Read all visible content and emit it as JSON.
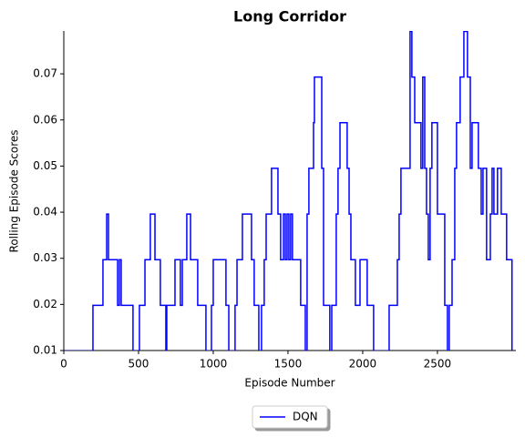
{
  "chart_data": {
    "type": "line",
    "title": "Long Corridor",
    "x_label": "Episode Number",
    "y_label": "Rolling Episode Scores",
    "x": [
      0,
      195,
      262,
      287,
      299,
      360,
      372,
      384,
      463,
      506,
      543,
      579,
      610,
      646,
      683,
      689,
      744,
      780,
      793,
      823,
      848,
      896,
      951,
      988,
      1000,
      1085,
      1104,
      1146,
      1159,
      1195,
      1256,
      1274,
      1305,
      1323,
      1341,
      1354,
      1390,
      1433,
      1451,
      1470,
      1482,
      1494,
      1506,
      1518,
      1530,
      1585,
      1616,
      1628,
      1640,
      1671,
      1677,
      1726,
      1738,
      1780,
      1793,
      1823,
      1835,
      1848,
      1896,
      1909,
      1921,
      1951,
      1982,
      2030,
      2073,
      2177,
      2232,
      2244,
      2256,
      2317,
      2329,
      2348,
      2390,
      2402,
      2415,
      2427,
      2439,
      2451,
      2463,
      2500,
      2549,
      2567,
      2579,
      2598,
      2616,
      2628,
      2652,
      2677,
      2701,
      2720,
      2732,
      2774,
      2793,
      2805,
      2829,
      2854,
      2866,
      2878,
      2902,
      2927,
      2963,
      2999
    ],
    "series": [
      {
        "name": "DQN",
        "color": "#0000ff",
        "values": [
          0.0099,
          0.0198,
          0.0297,
          0.0396,
          0.0297,
          0.0198,
          0.0297,
          0.0198,
          0.0099,
          0.0198,
          0.0297,
          0.0396,
          0.0297,
          0.0198,
          0.0099,
          0.0198,
          0.0297,
          0.0198,
          0.0297,
          0.0396,
          0.0297,
          0.0198,
          0.0099,
          0.0198,
          0.0297,
          0.0198,
          0.0099,
          0.0198,
          0.0297,
          0.0396,
          0.0297,
          0.0198,
          0.0099,
          0.0198,
          0.0297,
          0.0396,
          0.0495,
          0.0396,
          0.0297,
          0.0396,
          0.0297,
          0.0396,
          0.0297,
          0.0396,
          0.0297,
          0.0198,
          0.0099,
          0.0396,
          0.0495,
          0.0594,
          0.0693,
          0.0495,
          0.0198,
          0.0099,
          0.0198,
          0.0396,
          0.0495,
          0.0594,
          0.0495,
          0.0396,
          0.0297,
          0.0198,
          0.0297,
          0.0198,
          0.0099,
          0.0198,
          0.0297,
          0.0396,
          0.0495,
          0.0792,
          0.0693,
          0.0594,
          0.0495,
          0.0693,
          0.0495,
          0.0396,
          0.0297,
          0.0495,
          0.0594,
          0.0396,
          0.0198,
          0.0099,
          0.0198,
          0.0297,
          0.0495,
          0.0594,
          0.0693,
          0.0792,
          0.0693,
          0.0495,
          0.0594,
          0.0495,
          0.0396,
          0.0495,
          0.0297,
          0.0396,
          0.0495,
          0.0396,
          0.0495,
          0.0396,
          0.0297,
          0.0099
        ]
      }
    ],
    "xlim": [
      0,
      3025
    ],
    "xticks": [
      0,
      500,
      1000,
      1500,
      2000,
      2500
    ],
    "ylim": [
      0.01,
      0.0793
    ],
    "yticks": [
      0.01,
      0.02,
      0.03,
      0.04,
      0.05,
      0.06,
      0.07
    ],
    "legend": "lower center"
  }
}
